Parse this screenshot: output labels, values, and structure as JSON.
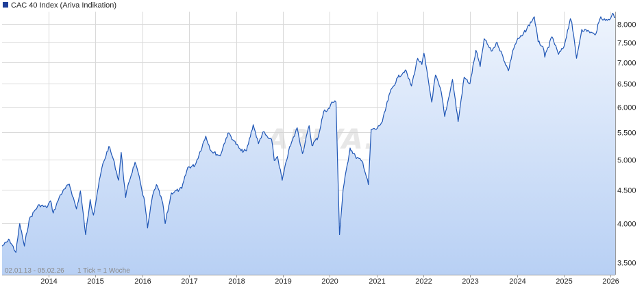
{
  "chart_data": {
    "type": "area",
    "title": "",
    "legend": {
      "label": "CAC 40 Index (Ariva Indikation)",
      "color": "#1f3f99",
      "placement": "top-left"
    },
    "caption": {
      "range": "02.01.13 - 05.02.26",
      "tick_note": "1 Tick = 1 Woche"
    },
    "watermark": "ARIVA.DE",
    "xlabel": "",
    "ylabel": "",
    "y_scale": "log",
    "ylim": [
      3350,
      8350
    ],
    "y_ticks": [
      "3.500",
      "4.000",
      "4.500",
      "5.000",
      "5.500",
      "6.000",
      "6.500",
      "7.000",
      "7.500",
      "8.000"
    ],
    "y_tick_values": [
      3500,
      4000,
      4500,
      5000,
      5500,
      6000,
      6500,
      7000,
      7500,
      8000
    ],
    "x_ticks": [
      "2014",
      "2015",
      "2016",
      "2017",
      "2018",
      "2019",
      "2020",
      "2021",
      "2022",
      "2023",
      "2024",
      "2025",
      "2026"
    ],
    "x_tick_values": [
      "2014-01-01",
      "2015-01-01",
      "2016-01-01",
      "2017-01-01",
      "2018-01-01",
      "2019-01-01",
      "2020-01-01",
      "2021-01-01",
      "2022-01-01",
      "2023-01-01",
      "2024-01-01",
      "2025-01-01",
      "2026-01-01"
    ],
    "xlim": [
      "2013-01-02",
      "2026-02-05"
    ],
    "grid": true,
    "colors": {
      "line": "#1f56b5",
      "fill_top": "#eef4fd",
      "fill_bottom": "#b8d0f4",
      "grid": "#d9d9d9"
    },
    "series": [
      {
        "x": [
          "2013-01-02",
          "2013-03-01",
          "2013-04-20",
          "2013-05-20",
          "2013-06-25",
          "2013-08-01",
          "2013-09-15",
          "2013-10-20",
          "2013-12-15",
          "2014-01-15",
          "2014-02-05",
          "2014-04-01",
          "2014-06-10",
          "2014-08-05",
          "2014-09-05",
          "2014-10-16",
          "2014-11-20",
          "2014-12-16",
          "2015-01-15",
          "2015-02-20",
          "2015-04-15",
          "2015-05-20",
          "2015-06-30",
          "2015-07-20",
          "2015-08-24",
          "2015-09-15",
          "2015-11-05",
          "2015-12-15",
          "2016-01-20",
          "2016-02-11",
          "2016-03-20",
          "2016-04-20",
          "2016-06-08",
          "2016-06-27",
          "2016-08-15",
          "2016-10-15",
          "2016-11-04",
          "2016-12-20",
          "2017-02-15",
          "2017-05-10",
          "2017-06-20",
          "2017-08-29",
          "2017-10-15",
          "2017-11-05",
          "2017-12-15",
          "2018-02-09",
          "2018-03-23",
          "2018-05-15",
          "2018-06-25",
          "2018-07-30",
          "2018-09-10",
          "2018-10-05",
          "2018-10-26",
          "2018-11-20",
          "2018-12-27",
          "2019-02-15",
          "2019-04-23",
          "2019-06-03",
          "2019-07-25",
          "2019-08-15",
          "2019-10-03",
          "2019-11-15",
          "2019-12-31",
          "2020-01-17",
          "2020-02-19",
          "2020-03-18",
          "2020-04-15",
          "2020-06-08",
          "2020-07-20",
          "2020-09-15",
          "2020-10-29",
          "2020-11-20",
          "2020-12-30",
          "2021-02-15",
          "2021-04-15",
          "2021-06-15",
          "2021-08-13",
          "2021-09-30",
          "2021-11-17",
          "2021-12-20",
          "2022-01-05",
          "2022-03-07",
          "2022-04-05",
          "2022-05-20",
          "2022-06-16",
          "2022-08-16",
          "2022-09-29",
          "2022-11-15",
          "2022-12-30",
          "2023-02-15",
          "2023-03-20",
          "2023-04-20",
          "2023-06-15",
          "2023-07-31",
          "2023-10-26",
          "2023-11-30",
          "2023-12-31",
          "2024-02-15",
          "2024-05-15",
          "2024-06-14",
          "2024-07-20",
          "2024-08-05",
          "2024-09-30",
          "2024-11-20",
          "2024-12-31",
          "2025-02-20",
          "2025-03-03",
          "2025-04-09",
          "2025-05-20",
          "2025-07-15",
          "2025-09-01",
          "2025-10-15",
          "2025-11-20",
          "2025-12-31",
          "2026-01-15",
          "2026-02-05"
        ],
        "values": [
          3700,
          3780,
          3620,
          4000,
          3700,
          4050,
          4190,
          4270,
          4230,
          4330,
          4150,
          4420,
          4590,
          4210,
          4480,
          3850,
          4350,
          4120,
          4460,
          4860,
          5230,
          5000,
          4650,
          5120,
          4380,
          4600,
          4950,
          4630,
          4300,
          3940,
          4400,
          4580,
          4300,
          4000,
          4450,
          4500,
          4520,
          4860,
          4900,
          5420,
          5150,
          5060,
          5380,
          5480,
          5330,
          5150,
          5150,
          5640,
          5280,
          5500,
          5380,
          5360,
          4980,
          5050,
          4650,
          5150,
          5580,
          5100,
          5620,
          5250,
          5400,
          5900,
          5970,
          6100,
          6100,
          3850,
          4500,
          5200,
          5050,
          4950,
          4580,
          5550,
          5550,
          5700,
          6300,
          6640,
          6820,
          6450,
          7100,
          6950,
          7230,
          6100,
          6700,
          6320,
          5800,
          6600,
          5700,
          6650,
          6500,
          7300,
          6900,
          7600,
          7280,
          7500,
          6800,
          7300,
          7550,
          7700,
          8200,
          7520,
          7400,
          7130,
          7650,
          7200,
          7380,
          8150,
          8050,
          7100,
          7850,
          7800,
          7700,
          8200,
          8100,
          8160,
          8300,
          8180
        ]
      }
    ]
  }
}
